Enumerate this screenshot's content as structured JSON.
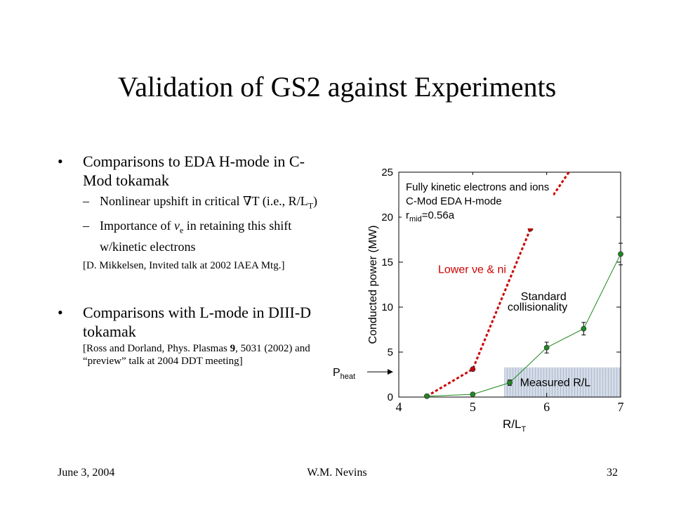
{
  "title": "Validation of GS2 against Experiments",
  "bullets": [
    {
      "text": "Comparisons to EDA H-mode in C-Mod tokamak",
      "subs": [
        {
          "pre": "Nonlinear upshift in critical ",
          "sym": "∇",
          "mid": "T (i.e., R/L",
          "sub": "T",
          "post": ")"
        },
        {
          "pre": "Importance of ",
          "sym": "ν",
          "sub": "e",
          "post": " in retaining this shift w/kinetic electrons"
        }
      ],
      "ref": "[D. Mikkelsen, Invited talk at 2002 IAEA Mtg.]"
    },
    {
      "text": "Comparisons with L-mode in DIII-D tokamak",
      "ref_pre": "[Ross and Dorland, Phys. Plasmas ",
      "ref_bold": "9",
      "ref_post": ", 5031 (2002)  and “preview” talk at 2004 DDT meeting]"
    }
  ],
  "footer": {
    "date": "June 3, 2004",
    "author": "W.M. Nevins",
    "page": "32"
  },
  "chart_data": {
    "type": "line",
    "xlabel": "R/L",
    "xlabel_sub": "T",
    "ylabel": "Conducted power (MW)",
    "xlim": [
      4,
      7
    ],
    "ylim": [
      0,
      25
    ],
    "x_ticks": [
      "4",
      "5",
      "6",
      "7"
    ],
    "y_ticks": [
      "0",
      "5",
      "10",
      "15",
      "20",
      "25"
    ],
    "series": [
      {
        "name": "Lower νe & ni",
        "style": "dashed",
        "color": "#cc0000",
        "x": [
          4.38,
          5.0,
          5.78,
          6.3
        ],
        "y": [
          0.1,
          3.1,
          18.7,
          25.0
        ],
        "markers": [
          0,
          1,
          2
        ]
      },
      {
        "name": "Standard collisionality",
        "style": "solid",
        "color": "#1f8a1f",
        "x": [
          4.38,
          5.0,
          5.5,
          6.0,
          6.5,
          7.0
        ],
        "y": [
          0.1,
          0.3,
          1.6,
          5.5,
          7.6,
          15.9
        ],
        "yerr": [
          0,
          0,
          0.3,
          0.6,
          0.7,
          1.2
        ]
      }
    ],
    "annotations": {
      "header_line1": "Fully kinetic electrons and ions",
      "header_line2": "C-Mod EDA H-mode",
      "header_line3_pre": "r",
      "header_line3_sub": "mid",
      "header_line3_post": "=0.56a",
      "red_label": "Lower νe & ni",
      "green_label_line1": "Standard",
      "green_label_line2": "collisionality",
      "measured_label": "Measured R/L",
      "pheat_label": "P",
      "pheat_sub": "heat"
    },
    "measured_band": {
      "x": [
        5.43,
        7.0
      ],
      "y": [
        0,
        3.3
      ]
    },
    "pheat_y": 2.8,
    "colors": {
      "red": "#cc0000",
      "green": "#1f8a1f",
      "band": "#b8c4d8"
    }
  }
}
